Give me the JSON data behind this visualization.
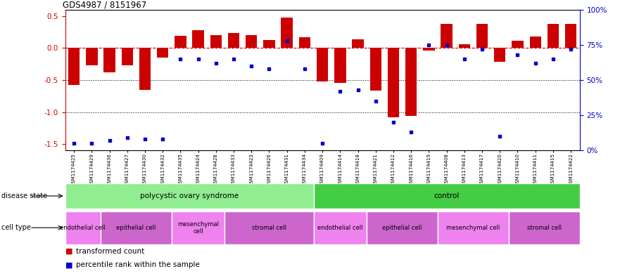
{
  "title": "GDS4987 / 8151967",
  "sample_ids": [
    "GSM1174425",
    "GSM1174429",
    "GSM1174436",
    "GSM1174427",
    "GSM1174430",
    "GSM1174432",
    "GSM1174435",
    "GSM1174424",
    "GSM1174428",
    "GSM1174433",
    "GSM1174423",
    "GSM1174426",
    "GSM1174431",
    "GSM1174434",
    "GSM1174409",
    "GSM1174414",
    "GSM1174418",
    "GSM1174421",
    "GSM1174412",
    "GSM1174416",
    "GSM1174419",
    "GSM1174408",
    "GSM1174413",
    "GSM1174417",
    "GSM1174420",
    "GSM1174410",
    "GSM1174411",
    "GSM1174415",
    "GSM1174422"
  ],
  "bar_values": [
    -0.58,
    -0.27,
    -0.38,
    -0.27,
    -0.65,
    -0.15,
    0.19,
    0.28,
    0.2,
    0.24,
    0.2,
    0.12,
    0.48,
    0.17,
    -0.52,
    -0.54,
    0.14,
    -0.67,
    -1.08,
    -1.06,
    -0.04,
    0.38,
    0.06,
    0.38,
    -0.22,
    0.11,
    0.18,
    0.38,
    0.38
  ],
  "percentile_values": [
    5,
    5,
    7,
    9,
    8,
    8,
    65,
    65,
    62,
    65,
    60,
    58,
    78,
    58,
    5,
    42,
    43,
    35,
    20,
    13,
    75,
    75,
    65,
    72,
    10,
    68,
    62,
    65,
    72
  ],
  "disease_state_groups": [
    {
      "label": "polycystic ovary syndrome",
      "start": 0,
      "end": 14,
      "color": "#90EE90"
    },
    {
      "label": "control",
      "start": 14,
      "end": 29,
      "color": "#44CC44"
    }
  ],
  "cell_type_groups": [
    {
      "label": "endothelial cell",
      "start": 0,
      "end": 2,
      "color": "#EE82EE"
    },
    {
      "label": "epithelial cell",
      "start": 2,
      "end": 6,
      "color": "#CC66CC"
    },
    {
      "label": "mesenchymal\ncell",
      "start": 6,
      "end": 9,
      "color": "#EE82EE"
    },
    {
      "label": "stromal cell",
      "start": 9,
      "end": 14,
      "color": "#CC66CC"
    },
    {
      "label": "endothelial cell",
      "start": 14,
      "end": 17,
      "color": "#EE82EE"
    },
    {
      "label": "epithelial cell",
      "start": 17,
      "end": 21,
      "color": "#CC66CC"
    },
    {
      "label": "mesenchymal cell",
      "start": 21,
      "end": 25,
      "color": "#EE82EE"
    },
    {
      "label": "stromal cell",
      "start": 25,
      "end": 29,
      "color": "#CC66CC"
    }
  ],
  "ylim": [
    -1.6,
    0.6
  ],
  "yticks_left": [
    -1.5,
    -1.0,
    -0.5,
    0.0,
    0.5
  ],
  "yticks_right": [
    0,
    25,
    50,
    75,
    100
  ],
  "bar_color": "#CC0000",
  "percentile_color": "#0000CC",
  "zero_line_color": "#CC0000"
}
